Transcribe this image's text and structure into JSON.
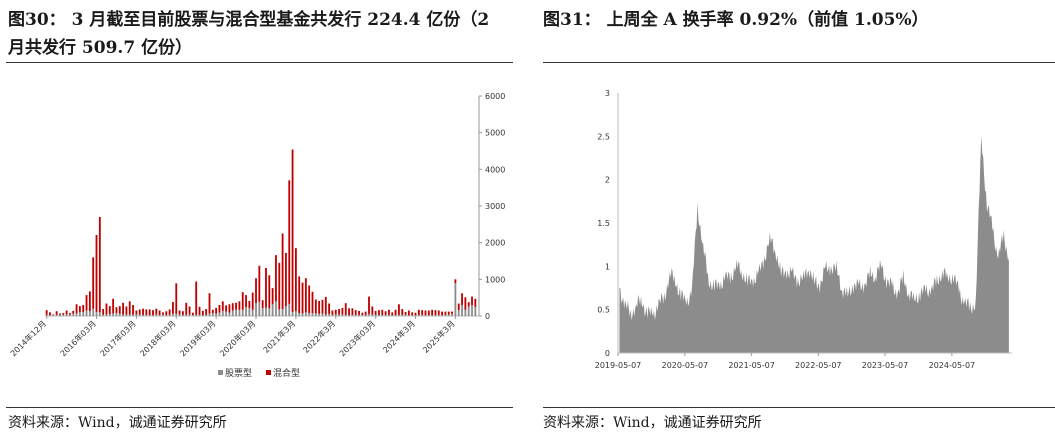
{
  "left": {
    "title": "图30：  3 月截至目前股票与混合型基金共发行 224.4 亿份（2 月共发行 509.7 亿份）",
    "source": "资料来源：Wind，诚通证券研究所",
    "chart_data": {
      "type": "bar",
      "title": "",
      "xlabel": "",
      "ylabel": "",
      "ylim": [
        0,
        6000
      ],
      "yticks": [
        "0",
        "1000",
        "2000",
        "3000",
        "4000",
        "5000",
        "6000"
      ],
      "axis_side": "right",
      "x_tick_labels": [
        "2014年12月",
        "2016年03月",
        "2017年03月",
        "2018年03月",
        "2019年03月",
        "2020年03月",
        "2021年3月",
        "2022年3月",
        "2023年03月",
        "2024年3月",
        "2025年3月"
      ],
      "x_tick_index": [
        0,
        15,
        27,
        39,
        51,
        63,
        75,
        87,
        99,
        111,
        123
      ],
      "legend_position": "bottom",
      "series": [
        {
          "name": "股票型",
          "color": "#8c8c8c",
          "values": [
            30,
            20,
            20,
            30,
            40,
            40,
            40,
            40,
            60,
            70,
            110,
            110,
            150,
            130,
            200,
            110,
            100,
            40,
            40,
            50,
            70,
            80,
            60,
            40,
            40,
            40,
            40,
            40,
            40,
            30,
            30,
            20,
            20,
            40,
            30,
            40,
            20,
            30,
            60,
            60,
            40,
            30,
            30,
            40,
            30,
            30,
            30,
            20,
            30,
            60,
            80,
            60,
            90,
            140,
            120,
            90,
            150,
            170,
            170,
            170,
            240,
            220,
            170,
            350,
            390,
            220,
            230,
            210,
            320,
            400,
            180,
            190,
            270,
            330,
            110,
            130,
            80,
            70,
            100,
            80,
            80,
            70,
            60,
            60,
            40,
            50,
            30,
            40,
            40,
            40,
            30,
            20,
            30,
            30,
            30,
            30,
            20,
            50,
            40,
            30,
            30,
            30,
            30,
            30,
            20,
            20,
            30,
            30,
            30,
            20,
            20,
            20,
            30,
            30,
            20,
            20,
            20,
            20,
            30,
            20,
            30,
            40,
            60,
            900,
            160,
            300,
            170,
            260,
            300,
            250
          ]
        },
        {
          "name": "混合型",
          "color": "#c00000",
          "values": [
            130,
            80,
            20,
            100,
            30,
            40,
            110,
            40,
            80,
            250,
            160,
            190,
            420,
            540,
            1400,
            2100,
            2600,
            150,
            300,
            220,
            400,
            160,
            210,
            320,
            220,
            360,
            260,
            110,
            140,
            170,
            150,
            160,
            140,
            160,
            120,
            60,
            110,
            150,
            320,
            830,
            110,
            100,
            330,
            220,
            60,
            910,
            220,
            120,
            160,
            560,
            90,
            160,
            210,
            260,
            170,
            230,
            200,
            190,
            230,
            480,
            330,
            190,
            470,
            680,
            980,
            210,
            1080,
            900,
            440,
            1260,
            1270,
            2060,
            1450,
            3370,
            4430,
            1720,
            1000,
            840,
            930,
            750,
            580,
            380,
            350,
            380,
            480,
            290,
            120,
            130,
            150,
            180,
            320,
            190,
            180,
            130,
            110,
            60,
            100,
            480,
            220,
            110,
            130,
            140,
            100,
            140,
            80,
            150,
            290,
            160,
            80,
            130,
            80,
            70,
            140,
            130,
            130,
            130,
            150,
            140,
            120,
            100,
            90,
            80,
            60,
            100,
            180,
            320,
            340,
            120,
            230,
            220
          ]
        }
      ]
    },
    "legend": [
      {
        "label": "股票型",
        "color": "#8c8c8c"
      },
      {
        "label": "混合型",
        "color": "#c00000"
      }
    ]
  },
  "right": {
    "title": "图31：  上周全 A 换手率 0.92%（前值 1.05%）",
    "source": "资料来源：Wind，诚通证券研究所",
    "chart_data": {
      "type": "area",
      "title": "",
      "xlabel": "",
      "ylabel": "",
      "ylim": [
        0,
        3
      ],
      "yticks": [
        "0",
        "0.5",
        "1",
        "1.5",
        "2",
        "2.5",
        "3"
      ],
      "x_tick_labels": [
        "2019-05-07",
        "2020-05-07",
        "2021-05-07",
        "2022-05-07",
        "2023-05-07",
        "2024-05-07"
      ],
      "x_range": [
        "2019-05-07",
        "2025-03-21"
      ],
      "color": "#8c8c8c",
      "series": [
        {
          "name": "",
          "x": [
            "2019-05",
            "2019-06",
            "2019-07",
            "2019-08",
            "2019-09",
            "2019-10",
            "2019-11",
            "2019-12",
            "2020-01",
            "2020-02",
            "2020-03",
            "2020-04",
            "2020-05",
            "2020-06",
            "2020-07",
            "2020-08",
            "2020-09",
            "2020-10",
            "2020-11",
            "2020-12",
            "2021-01",
            "2021-02",
            "2021-03",
            "2021-04",
            "2021-05",
            "2021-06",
            "2021-07",
            "2021-08",
            "2021-09",
            "2021-10",
            "2021-11",
            "2021-12",
            "2022-01",
            "2022-02",
            "2022-03",
            "2022-04",
            "2022-05",
            "2022-06",
            "2022-07",
            "2022-08",
            "2022-09",
            "2022-10",
            "2022-11",
            "2022-12",
            "2023-01",
            "2023-02",
            "2023-03",
            "2023-04",
            "2023-05",
            "2023-06",
            "2023-07",
            "2023-08",
            "2023-09",
            "2023-10",
            "2023-11",
            "2023-12",
            "2024-01",
            "2024-02",
            "2024-03",
            "2024-04",
            "2024-05",
            "2024-06",
            "2024-07",
            "2024-08",
            "2024-09",
            "2024-10",
            "2024-11",
            "2024-12",
            "2025-01",
            "2025-02",
            "2025-03"
          ],
          "values": [
            0.75,
            0.55,
            0.45,
            0.55,
            0.6,
            0.45,
            0.45,
            0.55,
            0.65,
            0.9,
            0.85,
            0.65,
            0.6,
            0.7,
            1.7,
            1.2,
            0.85,
            0.75,
            0.8,
            0.85,
            0.9,
            1.0,
            0.95,
            0.8,
            0.85,
            0.9,
            1.1,
            1.3,
            1.2,
            0.9,
            0.95,
            0.9,
            0.85,
            0.85,
            1.0,
            0.8,
            0.8,
            0.95,
            1.0,
            0.95,
            0.75,
            0.65,
            0.8,
            0.75,
            0.8,
            0.9,
            0.9,
            1.0,
            0.85,
            0.75,
            0.7,
            0.85,
            0.7,
            0.6,
            0.7,
            0.7,
            0.75,
            0.8,
            0.95,
            0.85,
            0.9,
            0.7,
            0.6,
            0.5,
            0.6,
            2.5,
            1.7,
            1.45,
            1.1,
            1.35,
            1.1
          ]
        }
      ]
    }
  }
}
